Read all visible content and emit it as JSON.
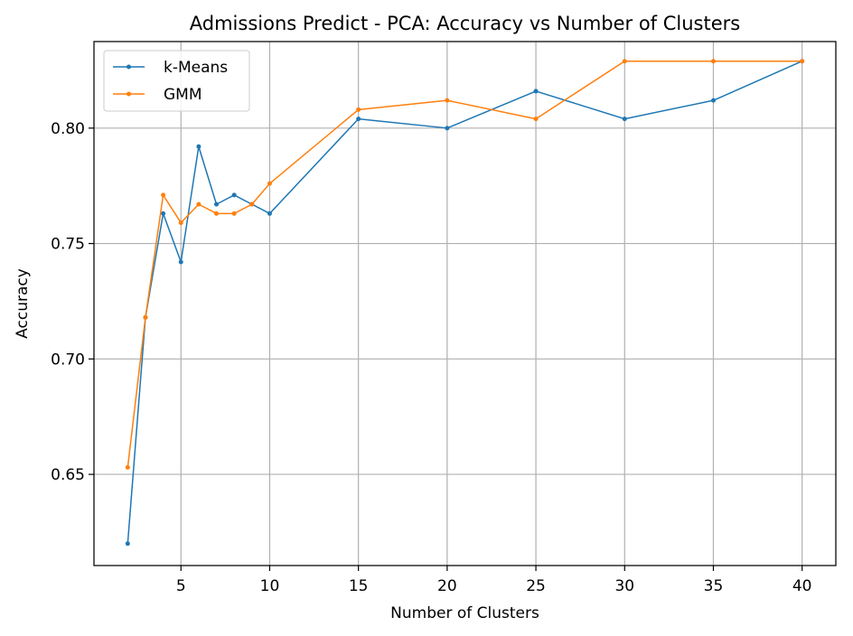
{
  "chart_data": {
    "type": "line",
    "title": "Admissions Predict - PCA: Accuracy vs Number of Clusters",
    "xlabel": "Number of Clusters",
    "ylabel": "Accuracy",
    "xlim": [
      0.1,
      41.9
    ],
    "ylim": [
      0.6105,
      0.8375
    ],
    "xticks": [
      5,
      10,
      15,
      20,
      25,
      30,
      35,
      40
    ],
    "yticks": [
      0.65,
      0.7,
      0.75,
      0.8
    ],
    "xtick_labels": [
      "5",
      "10",
      "15",
      "20",
      "25",
      "30",
      "35",
      "40"
    ],
    "ytick_labels": [
      "0.65",
      "0.70",
      "0.75",
      "0.80"
    ],
    "grid": true,
    "legend_position": "upper-left",
    "series": [
      {
        "name": "k-Means",
        "color": "#1f77b4",
        "x": [
          2,
          3,
          4,
          5,
          6,
          7,
          8,
          9,
          10,
          15,
          20,
          25,
          30,
          35,
          40
        ],
        "y": [
          0.62,
          0.718,
          0.763,
          0.742,
          0.792,
          0.767,
          0.771,
          0.767,
          0.763,
          0.804,
          0.8,
          0.816,
          0.804,
          0.812,
          0.829
        ]
      },
      {
        "name": "GMM",
        "color": "#ff7f0e",
        "x": [
          2,
          3,
          4,
          5,
          6,
          7,
          8,
          9,
          10,
          15,
          20,
          25,
          30,
          35,
          40
        ],
        "y": [
          0.653,
          0.718,
          0.771,
          0.759,
          0.767,
          0.763,
          0.763,
          0.767,
          0.776,
          0.808,
          0.812,
          0.804,
          0.829,
          0.829,
          0.829
        ]
      }
    ]
  }
}
